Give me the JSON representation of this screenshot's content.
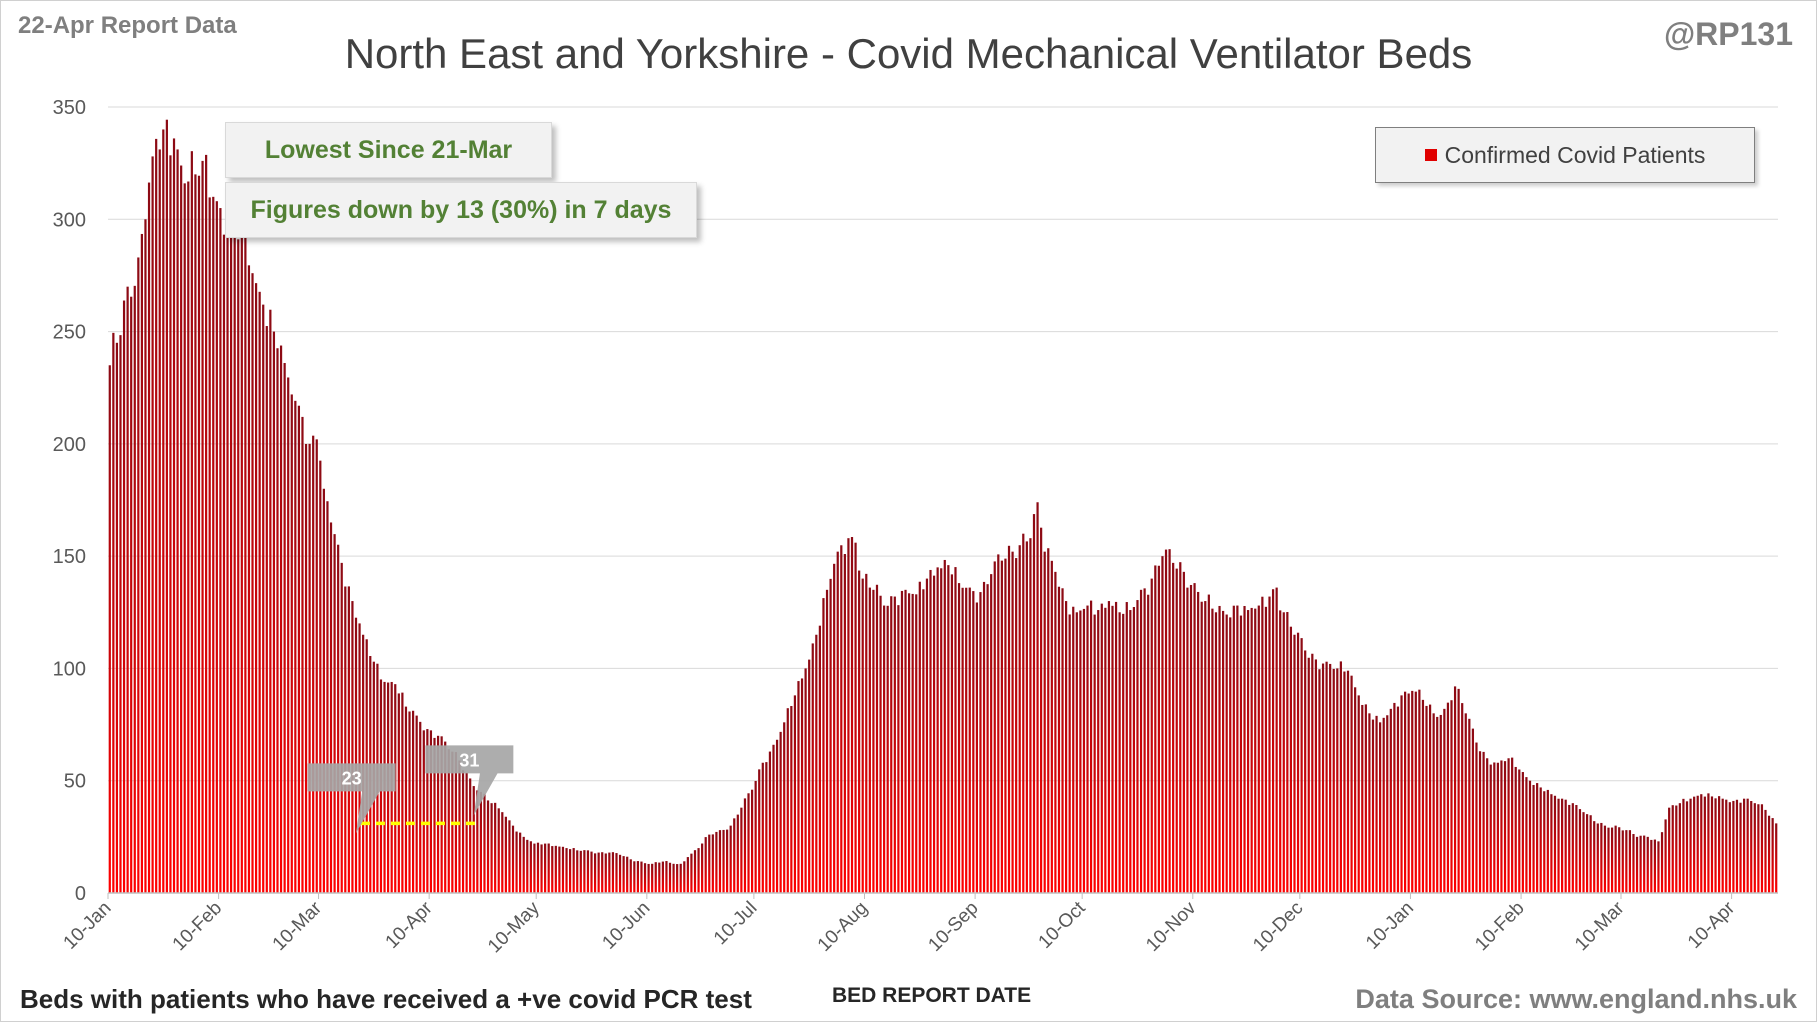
{
  "header": {
    "report_label": "22-Apr Report Data",
    "handle": "@RP131",
    "title": "North East and Yorkshire - Covid Mechanical Ventilator Beds"
  },
  "footer": {
    "note": "Beds with patients who have received a +ve covid PCR test",
    "xlabel": "BED REPORT DATE",
    "source": "Data Source: www.england.nhs.uk"
  },
  "annotations": {
    "box1": "Lowest Since 21-Mar",
    "box2": "Figures down by 13 (30%) in 7 days",
    "callout_low": "23",
    "callout_latest": "31"
  },
  "legend": {
    "label": "Confirmed Covid Patients"
  },
  "colors": {
    "bar_top": "#8b0a14",
    "bar_bottom": "#ff0000",
    "grid": "#d9d9d9",
    "reference_line": "#ffff00",
    "annotation_text": "#538135"
  },
  "chart_data": {
    "type": "bar",
    "title": "North East and Yorkshire - Covid Mechanical Ventilator Beds",
    "xlabel": "BED REPORT DATE",
    "ylabel": "",
    "ylim": [
      0,
      350
    ],
    "yticks": [
      0,
      50,
      100,
      150,
      200,
      250,
      300,
      350
    ],
    "grid": true,
    "legend_position": "top-right",
    "x_start": "10-Jan",
    "x_end": "22-Apr",
    "xtick_labels": [
      "10-Jan",
      "10-Feb",
      "10-Mar",
      "10-Apr",
      "10-May",
      "10-Jun",
      "10-Jul",
      "10-Aug",
      "10-Sep",
      "10-Oct",
      "10-Nov",
      "10-Dec",
      "10-Jan",
      "10-Feb",
      "10-Mar",
      "10-Apr"
    ],
    "series": [
      {
        "name": "Confirmed Covid Patients",
        "keypoints": [
          [
            "10-Jan",
            235
          ],
          [
            "12-Jan",
            245
          ],
          [
            "15-Jan",
            270
          ],
          [
            "18-Jan",
            283
          ],
          [
            "20-Jan",
            300
          ],
          [
            "22-Jan",
            328
          ],
          [
            "25-Jan",
            340
          ],
          [
            "28-Jan",
            336
          ],
          [
            "31-Jan",
            316
          ],
          [
            "3-Feb",
            320
          ],
          [
            "5-Feb",
            326
          ],
          [
            "8-Feb",
            310
          ],
          [
            "10-Feb",
            305
          ],
          [
            "13-Feb",
            296
          ],
          [
            "16-Feb",
            293
          ],
          [
            "19-Feb",
            276
          ],
          [
            "22-Feb",
            262
          ],
          [
            "25-Feb",
            250
          ],
          [
            "28-Feb",
            236
          ],
          [
            "2-Mar",
            222
          ],
          [
            "5-Mar",
            212
          ],
          [
            "7-Mar",
            200
          ],
          [
            "9-Mar",
            202
          ],
          [
            "11-Mar",
            180
          ],
          [
            "13-Mar",
            165
          ],
          [
            "16-Mar",
            147
          ],
          [
            "19-Mar",
            130
          ],
          [
            "22-Mar",
            115
          ],
          [
            "25-Mar",
            103
          ],
          [
            "28-Mar",
            94
          ],
          [
            "31-Mar",
            93
          ],
          [
            "3-Apr",
            83
          ],
          [
            "6-Apr",
            79
          ],
          [
            "9-Apr",
            73
          ],
          [
            "12-Apr",
            70
          ],
          [
            "15-Apr",
            64
          ],
          [
            "18-Apr",
            59
          ],
          [
            "21-Apr",
            51
          ],
          [
            "24-Apr",
            45
          ],
          [
            "27-Apr",
            40
          ],
          [
            "30-Apr",
            36
          ],
          [
            "3-May",
            30
          ],
          [
            "6-May",
            25
          ],
          [
            "9-May",
            22
          ],
          [
            "12-May",
            22
          ],
          [
            "15-May",
            21
          ],
          [
            "18-May",
            20
          ],
          [
            "21-May",
            19
          ],
          [
            "24-May",
            19
          ],
          [
            "27-May",
            18
          ],
          [
            "30-May",
            18
          ],
          [
            "2-Jun",
            17
          ],
          [
            "5-Jun",
            15
          ],
          [
            "8-Jun",
            14
          ],
          [
            "11-Jun",
            13
          ],
          [
            "14-Jun",
            14
          ],
          [
            "17-Jun",
            13
          ],
          [
            "19-Jun",
            13
          ],
          [
            "21-Jun",
            16
          ],
          [
            "24-Jun",
            20
          ],
          [
            "27-Jun",
            26
          ],
          [
            "30-Jun",
            28
          ],
          [
            "3-Jul",
            30
          ],
          [
            "6-Jul",
            38
          ],
          [
            "9-Jul",
            46
          ],
          [
            "12-Jul",
            58
          ],
          [
            "15-Jul",
            66
          ],
          [
            "18-Jul",
            76
          ],
          [
            "21-Jul",
            88
          ],
          [
            "24-Jul",
            100
          ],
          [
            "27-Jul",
            115
          ],
          [
            "30-Jul",
            135
          ],
          [
            "2-Aug",
            152
          ],
          [
            "5-Aug",
            158
          ],
          [
            "7-Aug",
            156
          ],
          [
            "9-Aug",
            140
          ],
          [
            "12-Aug",
            135
          ],
          [
            "15-Aug",
            128
          ],
          [
            "18-Aug",
            132
          ],
          [
            "21-Aug",
            135
          ],
          [
            "24-Aug",
            133
          ],
          [
            "27-Aug",
            140
          ],
          [
            "30-Aug",
            145
          ],
          [
            "2-Sep",
            146
          ],
          [
            "5-Sep",
            138
          ],
          [
            "8-Sep",
            136
          ],
          [
            "11-Sep",
            134
          ],
          [
            "14-Sep",
            142
          ],
          [
            "17-Sep",
            148
          ],
          [
            "20-Sep",
            152
          ],
          [
            "23-Sep",
            160
          ],
          [
            "25-Sep",
            158
          ],
          [
            "27-Sep",
            174
          ],
          [
            "29-Sep",
            152
          ],
          [
            "2-Oct",
            143
          ],
          [
            "5-Oct",
            130
          ],
          [
            "8-Oct",
            125
          ],
          [
            "11-Oct",
            128
          ],
          [
            "14-Oct",
            126
          ],
          [
            "17-Oct",
            130
          ],
          [
            "20-Oct",
            125
          ],
          [
            "23-Oct",
            126
          ],
          [
            "26-Oct",
            135
          ],
          [
            "29-Oct",
            140
          ],
          [
            "1-Nov",
            150
          ],
          [
            "4-Nov",
            147
          ],
          [
            "7-Nov",
            143
          ],
          [
            "10-Nov",
            138
          ],
          [
            "13-Nov",
            130
          ],
          [
            "16-Nov",
            125
          ],
          [
            "19-Nov",
            124
          ],
          [
            "22-Nov",
            128
          ],
          [
            "25-Nov",
            126
          ],
          [
            "28-Nov",
            128
          ],
          [
            "1-Dec",
            132
          ],
          [
            "3-Dec",
            136
          ],
          [
            "5-Dec",
            125
          ],
          [
            "8-Dec",
            115
          ],
          [
            "11-Dec",
            108
          ],
          [
            "14-Dec",
            104
          ],
          [
            "17-Dec",
            103
          ],
          [
            "20-Dec",
            100
          ],
          [
            "23-Dec",
            99
          ],
          [
            "26-Dec",
            88
          ],
          [
            "29-Dec",
            80
          ],
          [
            "1-Jan",
            76
          ],
          [
            "4-Jan",
            82
          ],
          [
            "7-Jan",
            88
          ],
          [
            "10-Jan",
            90
          ],
          [
            "13-Jan",
            86
          ],
          [
            "16-Jan",
            80
          ],
          [
            "19-Jan",
            82
          ],
          [
            "22-Jan",
            92
          ],
          [
            "25-Jan",
            80
          ],
          [
            "28-Jan",
            67
          ],
          [
            "31-Jan",
            60
          ],
          [
            "3-Feb",
            58
          ],
          [
            "6-Feb",
            60
          ],
          [
            "9-Feb",
            55
          ],
          [
            "12-Feb",
            50
          ],
          [
            "15-Feb",
            47
          ],
          [
            "18-Feb",
            44
          ],
          [
            "21-Feb",
            42
          ],
          [
            "24-Feb",
            40
          ],
          [
            "27-Feb",
            36
          ],
          [
            "2-Mar",
            32
          ],
          [
            "5-Mar",
            30
          ],
          [
            "8-Mar",
            30
          ],
          [
            "11-Mar",
            28
          ],
          [
            "14-Mar",
            25
          ],
          [
            "17-Mar",
            25
          ],
          [
            "20-Mar",
            23
          ],
          [
            "23-Mar",
            38
          ],
          [
            "26-Mar",
            40
          ],
          [
            "29-Mar",
            42
          ],
          [
            "1-Apr",
            44
          ],
          [
            "4-Apr",
            43
          ],
          [
            "7-Apr",
            42
          ],
          [
            "10-Apr",
            41
          ],
          [
            "13-Apr",
            42
          ],
          [
            "16-Apr",
            40
          ],
          [
            "19-Apr",
            37
          ],
          [
            "22-Apr",
            31
          ]
        ]
      }
    ],
    "reference_line": {
      "value": 31,
      "from": "22-Mar",
      "to": "22-Apr"
    },
    "callouts": [
      {
        "label": "23",
        "x": "20-Mar",
        "y": 23
      },
      {
        "label": "31",
        "x": "22-Apr",
        "y": 31
      }
    ]
  }
}
